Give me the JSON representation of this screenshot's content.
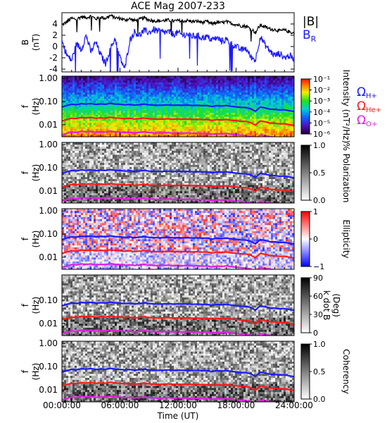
{
  "chart_data": {
    "type": "line",
    "title": "ACE Mag 2007-233",
    "xlabel": "Time (UT)",
    "x_ticks": [
      "00:00:00",
      "06:00:00",
      "12:00:00",
      "18:00:00",
      "24:00:00"
    ],
    "x_range_hours": [
      0,
      24
    ],
    "colors": {
      "B_mag": "#000000",
      "B_R": "#1a1aff",
      "H": "#1a1aff",
      "He": "#ff1a1a",
      "O": "#e020e0"
    },
    "panels": [
      {
        "id": "b-field",
        "type": "line",
        "ylabel": "B",
        "ylabel_unit": "(nT)",
        "ylim": [
          -4.5,
          6
        ],
        "y_ticks": [
          -4,
          -2,
          0,
          2,
          4
        ],
        "y_tick_labels": [
          "-4",
          "-2",
          "0",
          "2",
          "4"
        ],
        "legend": [
          {
            "text": "|B|",
            "sub": "",
            "color": "#000000"
          },
          {
            "text": "B",
            "sub": "R",
            "color": "#1a1aff"
          }
        ],
        "series": [
          {
            "name": "|B|",
            "color": "#000000",
            "x": [
              0,
              0.5,
              1,
              1.5,
              2,
              2.5,
              3,
              3.5,
              4,
              4.5,
              5,
              5.5,
              6,
              6.5,
              7,
              7.5,
              8,
              8.5,
              9,
              9.5,
              10,
              10.5,
              11,
              11.5,
              12,
              12.5,
              13,
              13.5,
              14,
              14.5,
              15,
              15.5,
              16,
              16.5,
              17,
              17.5,
              18,
              18.5,
              19,
              19.5,
              20,
              20.5,
              21,
              21.5,
              22,
              22.5,
              23,
              23.5,
              24
            ],
            "y": [
              3.8,
              4.4,
              5.0,
              4.8,
              5.3,
              5.1,
              5.4,
              4.9,
              5.2,
              5.0,
              5.5,
              5.1,
              5.0,
              4.7,
              4.9,
              4.6,
              4.8,
              5.1,
              4.7,
              4.6,
              4.5,
              4.6,
              4.7,
              4.5,
              4.6,
              4.5,
              4.6,
              4.4,
              4.5,
              4.3,
              4.4,
              4.0,
              4.3,
              4.2,
              4.4,
              4.1,
              3.9,
              3.7,
              3.6,
              3.2,
              2.5,
              3.8,
              3.5,
              3.1,
              3.0,
              2.8,
              2.9,
              2.6,
              2.4
            ]
          },
          {
            "name": "B_R",
            "color": "#1a1aff",
            "x": [
              0,
              0.5,
              1,
              1.5,
              2,
              2.5,
              3,
              3.5,
              4,
              4.5,
              5,
              5.5,
              6,
              6.5,
              7,
              7.5,
              8,
              8.5,
              9,
              9.5,
              10,
              10.5,
              11,
              11.5,
              12,
              12.5,
              13,
              13.5,
              14,
              14.5,
              15,
              15.5,
              16,
              16.5,
              17,
              17.5,
              18,
              18.5,
              19,
              19.5,
              20,
              20.5,
              21,
              21.5,
              22,
              22.5,
              23,
              23.5,
              24
            ],
            "y": [
              1.0,
              -1.5,
              -2.5,
              0.5,
              -0.5,
              2.0,
              -1.0,
              0.8,
              -1.5,
              -3.0,
              -0.5,
              1.5,
              -2.0,
              -4.0,
              1.0,
              2.6,
              2.0,
              2.8,
              2.5,
              3.0,
              2.7,
              2.5,
              2.6,
              2.2,
              2.4,
              2.0,
              2.2,
              1.8,
              1.9,
              1.6,
              1.7,
              1.2,
              1.5,
              1.0,
              1.2,
              0.5,
              0.0,
              -0.6,
              -0.3,
              -1.8,
              -2.4,
              1.8,
              0.3,
              -0.8,
              -1.6,
              -1.2,
              -2.0,
              -1.6,
              -2.3
            ]
          }
        ]
      },
      {
        "id": "intensity",
        "type": "heatmap",
        "ylabel": "f",
        "ylabel_unit": "(Hz)",
        "y_tick_labels": [
          "1.00",
          "0.10",
          "0.01"
        ],
        "colorbar": {
          "label": "Intensity (nT²/Hz)",
          "ticks": [
            "10⁻¹",
            "10⁻²",
            "10⁻³",
            "10⁻⁴",
            "10⁻⁵",
            "10⁻⁶"
          ],
          "scale": "rainbow"
        },
        "legend": [
          {
            "text": "Ω",
            "sub": "H+",
            "color": "#1a1aff"
          },
          {
            "text": "Ω",
            "sub": "He+",
            "color": "#ff1a1a"
          },
          {
            "text": "Ω",
            "sub": "O+",
            "color": "#e020e0"
          }
        ]
      },
      {
        "id": "polarization",
        "type": "heatmap",
        "ylabel": "f",
        "ylabel_unit": "(Hz)",
        "y_tick_labels": [
          "1.00",
          "0.10",
          "0.01"
        ],
        "colorbar": {
          "label": "% Polarization",
          "ticks": [
            "1.0",
            "0.5",
            "0.0"
          ],
          "scale": "gray"
        }
      },
      {
        "id": "ellipticity",
        "type": "heatmap",
        "ylabel": "f",
        "ylabel_unit": "(Hz)",
        "y_tick_labels": [
          "1.00",
          "0.10",
          "0.01"
        ],
        "colorbar": {
          "label": "Ellipticity",
          "ticks": [
            "1",
            "0",
            "−1"
          ],
          "scale": "bwr"
        }
      },
      {
        "id": "kdotb",
        "type": "heatmap",
        "ylabel": "f",
        "ylabel_unit": "(Hz)",
        "y_tick_labels": [
          "0.10",
          "0.01"
        ],
        "colorbar": {
          "label": "k dot B",
          "label2": "(Deg)",
          "ticks": [
            "90",
            "60",
            "30",
            "0"
          ],
          "scale": "gray"
        }
      },
      {
        "id": "coherency",
        "type": "heatmap",
        "ylabel": "f",
        "ylabel_unit": "(Hz)",
        "y_tick_labels": [
          "1.00",
          "0.10",
          "0.01"
        ],
        "colorbar": {
          "label": "Coherency",
          "ticks": [
            "1.0",
            "0.5",
            "0.0"
          ],
          "scale": "gray"
        }
      }
    ],
    "gyrofrequencies_hz": {
      "x": [
        0,
        0.5,
        1,
        1.5,
        2,
        2.5,
        3,
        3.5,
        4,
        4.5,
        5,
        5.5,
        6,
        6.5,
        7,
        7.5,
        8,
        8.5,
        9,
        9.5,
        10,
        10.5,
        11,
        11.5,
        12,
        12.5,
        13,
        13.5,
        14,
        14.5,
        15,
        15.5,
        16,
        16.5,
        17,
        17.5,
        18,
        18.5,
        19,
        19.5,
        20,
        20.5,
        21,
        21.5,
        22,
        22.5,
        23,
        23.5,
        24
      ],
      "H+": [
        0.058,
        0.067,
        0.076,
        0.073,
        0.081,
        0.078,
        0.082,
        0.075,
        0.079,
        0.076,
        0.084,
        0.078,
        0.076,
        0.072,
        0.075,
        0.07,
        0.073,
        0.078,
        0.072,
        0.07,
        0.069,
        0.07,
        0.072,
        0.069,
        0.07,
        0.069,
        0.07,
        0.067,
        0.069,
        0.066,
        0.067,
        0.061,
        0.066,
        0.064,
        0.067,
        0.062,
        0.059,
        0.056,
        0.055,
        0.049,
        0.038,
        0.058,
        0.053,
        0.047,
        0.046,
        0.043,
        0.044,
        0.04,
        0.037
      ],
      "He+": [
        0.0145,
        0.0168,
        0.019,
        0.0183,
        0.0203,
        0.0195,
        0.0205,
        0.0188,
        0.0198,
        0.019,
        0.021,
        0.0195,
        0.019,
        0.018,
        0.0188,
        0.0175,
        0.0183,
        0.0195,
        0.018,
        0.0175,
        0.0172,
        0.0175,
        0.018,
        0.0172,
        0.0175,
        0.0172,
        0.0175,
        0.0168,
        0.0172,
        0.0165,
        0.0168,
        0.0153,
        0.0165,
        0.016,
        0.0168,
        0.0155,
        0.0148,
        0.014,
        0.0138,
        0.0123,
        0.0095,
        0.0145,
        0.0133,
        0.0118,
        0.0115,
        0.0108,
        0.011,
        0.01,
        0.0093
      ],
      "O+": [
        0.0036,
        0.0042,
        0.0048,
        0.0046,
        0.0051,
        0.0049,
        0.0051,
        0.0047,
        0.0049,
        0.0048,
        0.0053,
        0.0049,
        0.0048,
        0.0045,
        0.0047,
        0.0044,
        0.0046,
        0.0049,
        0.0045,
        0.0044,
        0.0043,
        0.0044,
        0.0045,
        0.0043,
        0.0044,
        0.0043,
        0.0044,
        0.0042,
        0.0043,
        0.0041,
        0.0042,
        0.0038,
        0.0041,
        0.004,
        0.0042,
        0.0039,
        0.0037,
        0.0035,
        0.0034,
        0.0031,
        0.0024,
        0.0036,
        0.0033,
        0.003,
        0.0029,
        0.0027,
        0.0028,
        0.0025,
        0.0023
      ]
    }
  }
}
